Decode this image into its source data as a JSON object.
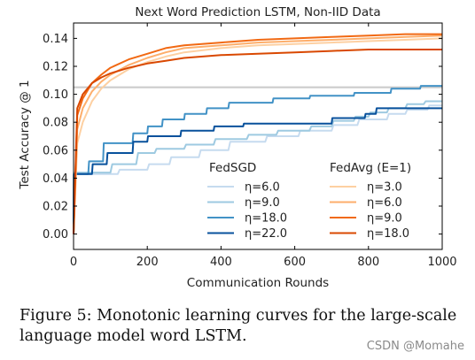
{
  "chart_data": {
    "type": "line",
    "title": "Next Word Prediction LSTM, Non-IID Data",
    "xlabel": "Communication Rounds",
    "ylabel": "Test Accuracy @ 1",
    "xlim": [
      0,
      1000
    ],
    "ylim": [
      -0.011,
      0.151
    ],
    "xticks": [
      "0",
      "200",
      "400",
      "600",
      "800",
      "1000"
    ],
    "yticks": [
      "0.00",
      "0.02",
      "0.04",
      "0.06",
      "0.08",
      "0.10",
      "0.12",
      "0.14"
    ],
    "grid": false,
    "legend_placement": "lower-right",
    "legend_groups": [
      {
        "title": "FedSGD",
        "series_index": [
          0,
          1,
          2,
          3
        ]
      },
      {
        "title": "FedAvg (E=1)",
        "series_index": [
          4,
          5,
          6,
          7
        ]
      }
    ],
    "reference_lines": [
      {
        "y": 0.105,
        "color": "#cccccc"
      }
    ],
    "series": [
      {
        "name": "η=6.0",
        "color": "#c6dbef",
        "x": [
          0,
          1,
          120,
          125,
          200,
          205,
          260,
          265,
          340,
          345,
          420,
          425,
          520,
          525,
          610,
          615,
          700,
          705,
          770,
          775,
          850,
          855,
          900,
          905,
          960,
          965,
          1000
        ],
        "y": [
          0.0,
          0.043,
          0.043,
          0.046,
          0.046,
          0.05,
          0.05,
          0.055,
          0.055,
          0.06,
          0.06,
          0.066,
          0.066,
          0.07,
          0.07,
          0.074,
          0.074,
          0.078,
          0.078,
          0.082,
          0.082,
          0.086,
          0.086,
          0.089,
          0.089,
          0.092,
          0.092
        ]
      },
      {
        "name": "η=9.0",
        "color": "#9ecae1",
        "x": [
          0,
          1,
          100,
          105,
          170,
          175,
          220,
          225,
          300,
          305,
          380,
          385,
          470,
          475,
          550,
          555,
          640,
          645,
          700,
          705,
          760,
          765,
          800,
          805,
          850,
          855,
          900,
          905,
          950,
          955,
          1000
        ],
        "y": [
          0.0,
          0.044,
          0.044,
          0.05,
          0.05,
          0.058,
          0.058,
          0.061,
          0.061,
          0.064,
          0.064,
          0.068,
          0.068,
          0.071,
          0.071,
          0.074,
          0.074,
          0.077,
          0.077,
          0.081,
          0.081,
          0.084,
          0.084,
          0.087,
          0.087,
          0.09,
          0.09,
          0.093,
          0.093,
          0.095,
          0.095
        ]
      },
      {
        "name": "η=18.0",
        "color": "#4292c6",
        "x": [
          0,
          1,
          40,
          42,
          80,
          82,
          160,
          162,
          200,
          202,
          240,
          242,
          300,
          302,
          360,
          362,
          420,
          422,
          540,
          542,
          640,
          642,
          760,
          762,
          860,
          862,
          940,
          942,
          1000
        ],
        "y": [
          0.0,
          0.043,
          0.043,
          0.052,
          0.052,
          0.065,
          0.065,
          0.072,
          0.072,
          0.077,
          0.077,
          0.082,
          0.082,
          0.086,
          0.086,
          0.09,
          0.09,
          0.094,
          0.094,
          0.097,
          0.097,
          0.099,
          0.099,
          0.101,
          0.101,
          0.104,
          0.104,
          0.106,
          0.106
        ]
      },
      {
        "name": "η=22.0",
        "color": "#08519c",
        "x": [
          0,
          1,
          50,
          52,
          90,
          92,
          160,
          162,
          200,
          202,
          290,
          292,
          380,
          382,
          460,
          462,
          700,
          702,
          790,
          792,
          820,
          822,
          1000
        ],
        "y": [
          0.0,
          0.043,
          0.043,
          0.05,
          0.05,
          0.058,
          0.058,
          0.066,
          0.066,
          0.07,
          0.07,
          0.074,
          0.074,
          0.077,
          0.077,
          0.079,
          0.079,
          0.083,
          0.083,
          0.086,
          0.086,
          0.09,
          0.09
        ]
      },
      {
        "name": "η=3.0",
        "color": "#fdd0a2",
        "x": [
          0,
          10,
          25,
          50,
          75,
          100,
          150,
          200,
          250,
          300,
          400,
          500,
          600,
          700,
          800,
          900,
          1000
        ],
        "y": [
          0.0,
          0.065,
          0.08,
          0.095,
          0.104,
          0.11,
          0.118,
          0.123,
          0.127,
          0.13,
          0.133,
          0.135,
          0.136,
          0.137,
          0.138,
          0.139,
          0.14
        ]
      },
      {
        "name": "η=6.0",
        "color": "#fdae6b",
        "x": [
          0,
          10,
          25,
          50,
          75,
          100,
          150,
          200,
          250,
          300,
          400,
          500,
          600,
          700,
          800,
          900,
          1000
        ],
        "y": [
          0.0,
          0.075,
          0.09,
          0.102,
          0.109,
          0.114,
          0.121,
          0.126,
          0.13,
          0.133,
          0.135,
          0.137,
          0.138,
          0.139,
          0.14,
          0.141,
          0.142
        ]
      },
      {
        "name": "η=9.0",
        "color": "#f16913",
        "x": [
          0,
          10,
          25,
          50,
          75,
          100,
          150,
          200,
          250,
          300,
          400,
          500,
          600,
          700,
          800,
          900,
          1000
        ],
        "y": [
          0.0,
          0.085,
          0.097,
          0.108,
          0.114,
          0.119,
          0.125,
          0.129,
          0.133,
          0.135,
          0.137,
          0.139,
          0.14,
          0.141,
          0.142,
          0.143,
          0.143
        ]
      },
      {
        "name": "η=18.0",
        "color": "#d94801",
        "x": [
          0,
          10,
          25,
          50,
          75,
          100,
          150,
          200,
          250,
          300,
          400,
          500,
          600,
          700,
          800,
          900,
          1000
        ],
        "y": [
          0.0,
          0.09,
          0.1,
          0.108,
          0.112,
          0.115,
          0.119,
          0.122,
          0.124,
          0.126,
          0.128,
          0.129,
          0.13,
          0.131,
          0.132,
          0.132,
          0.132
        ]
      }
    ]
  },
  "caption": {
    "line1": "Figure 5:  Monotonic learning curves for the large-scale",
    "line2": "language model word LSTM."
  },
  "watermark": "CSDN @Momahe"
}
